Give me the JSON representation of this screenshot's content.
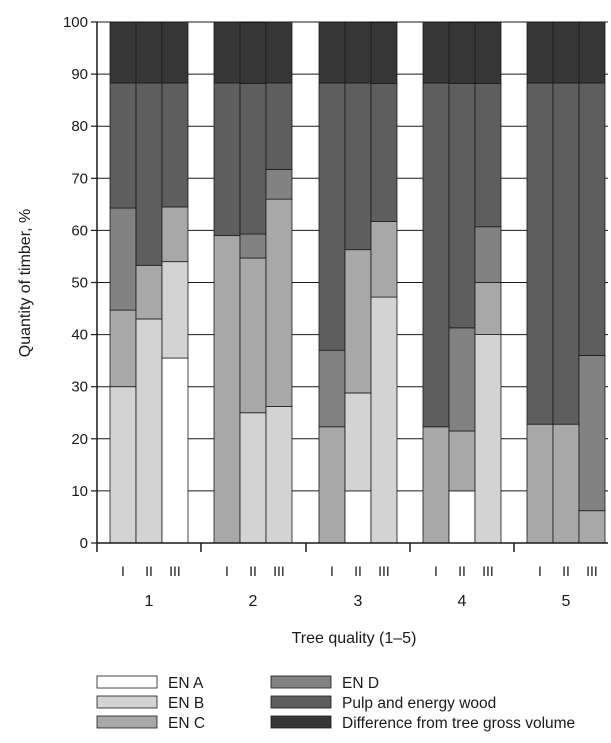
{
  "chart_data": {
    "type": "bar",
    "stacked": true,
    "ylabel": "Quantity of timber, %",
    "xlabel": "Tree quality (1–5)",
    "ylim": [
      0,
      100
    ],
    "yticks": [
      0,
      10,
      20,
      30,
      40,
      50,
      60,
      70,
      80,
      90,
      100
    ],
    "grid": true,
    "legend_position": "bottom",
    "groups": [
      "1",
      "2",
      "3",
      "4",
      "5"
    ],
    "subcategories": [
      "I",
      "II",
      "III"
    ],
    "series": [
      {
        "name": "EN A",
        "color": "#ffffff",
        "values": [
          [
            0,
            0,
            35.5
          ],
          [
            0,
            0,
            0
          ],
          [
            0,
            10,
            0
          ],
          [
            0,
            10,
            0
          ],
          [
            0,
            0,
            0
          ]
        ]
      },
      {
        "name": "EN B",
        "color": "#d3d3d3",
        "values": [
          [
            30,
            43,
            18.5
          ],
          [
            0,
            25,
            26.2
          ],
          [
            0,
            18.8,
            47.2
          ],
          [
            0,
            0,
            40
          ],
          [
            0,
            0,
            0
          ]
        ]
      },
      {
        "name": "EN C",
        "color": "#a8a8a8",
        "values": [
          [
            14.7,
            10.3,
            10.5
          ],
          [
            59,
            29.7,
            39.8
          ],
          [
            22.3,
            27.5,
            14.5
          ],
          [
            22.3,
            11.5,
            10
          ],
          [
            22.8,
            22.8,
            6.2
          ]
        ]
      },
      {
        "name": "EN D",
        "color": "#828282",
        "values": [
          [
            19.6,
            0,
            0
          ],
          [
            0,
            4.6,
            5.7
          ],
          [
            14.7,
            0,
            0
          ],
          [
            0,
            19.8,
            10.7
          ],
          [
            0,
            0,
            29.8
          ]
        ]
      },
      {
        "name": "Pulp and energy wood",
        "color": "#5e5e5e",
        "values": [
          [
            24,
            35,
            23.8
          ],
          [
            29.3,
            28.9,
            16.6
          ],
          [
            51.3,
            32,
            26.5
          ],
          [
            66,
            46.9,
            27.5
          ],
          [
            65.5,
            65.5,
            52.3
          ]
        ]
      },
      {
        "name": "Difference from tree gross volume",
        "color": "#363636",
        "values": [
          [
            11.7,
            11.7,
            11.7
          ],
          [
            11.7,
            11.7,
            11.7
          ],
          [
            11.7,
            11.7,
            11.7
          ],
          [
            11.7,
            11.7,
            11.7
          ],
          [
            11.7,
            11.7,
            11.7
          ]
        ]
      }
    ]
  }
}
